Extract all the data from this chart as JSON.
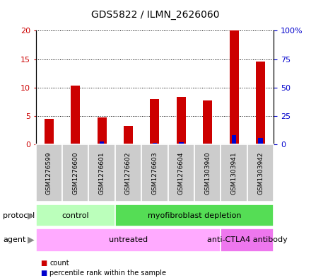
{
  "title": "GDS5822 / ILMN_2626060",
  "samples": [
    "GSM1276599",
    "GSM1276600",
    "GSM1276601",
    "GSM1276602",
    "GSM1276603",
    "GSM1276604",
    "GSM1303940",
    "GSM1303941",
    "GSM1303942"
  ],
  "count_values": [
    4.5,
    10.3,
    4.8,
    3.3,
    8.0,
    8.3,
    7.8,
    20.0,
    14.6
  ],
  "percentile_values": [
    0.2,
    1.0,
    2.7,
    0.3,
    1.2,
    1.9,
    0.9,
    8.0,
    5.8
  ],
  "bar_width": 0.35,
  "percentile_bar_width": 0.18,
  "ylim_left": [
    0,
    20
  ],
  "ylim_right": [
    0,
    100
  ],
  "yticks_left": [
    0,
    5,
    10,
    15,
    20
  ],
  "yticks_right": [
    0,
    25,
    50,
    75,
    100
  ],
  "ytick_labels_right": [
    "0",
    "25",
    "50",
    "75",
    "100%"
  ],
  "count_color": "#cc0000",
  "percentile_color": "#0000cc",
  "grid_color": "black",
  "protocol_groups": [
    {
      "label": "control",
      "start": 0,
      "end": 3,
      "color": "#bbffbb"
    },
    {
      "label": "myofibroblast depletion",
      "start": 3,
      "end": 9,
      "color": "#55dd55"
    }
  ],
  "agent_groups": [
    {
      "label": "untreated",
      "start": 0,
      "end": 7,
      "color": "#ffaaff"
    },
    {
      "label": "anti-CTLA4 antibody",
      "start": 7,
      "end": 9,
      "color": "#ee77ee"
    }
  ],
  "legend_items": [
    {
      "label": "count",
      "color": "#cc0000"
    },
    {
      "label": "percentile rank within the sample",
      "color": "#0000cc"
    }
  ],
  "background_color": "#ffffff",
  "tick_label_bg": "#cccccc",
  "tick_label_edge": "#aaaaaa"
}
